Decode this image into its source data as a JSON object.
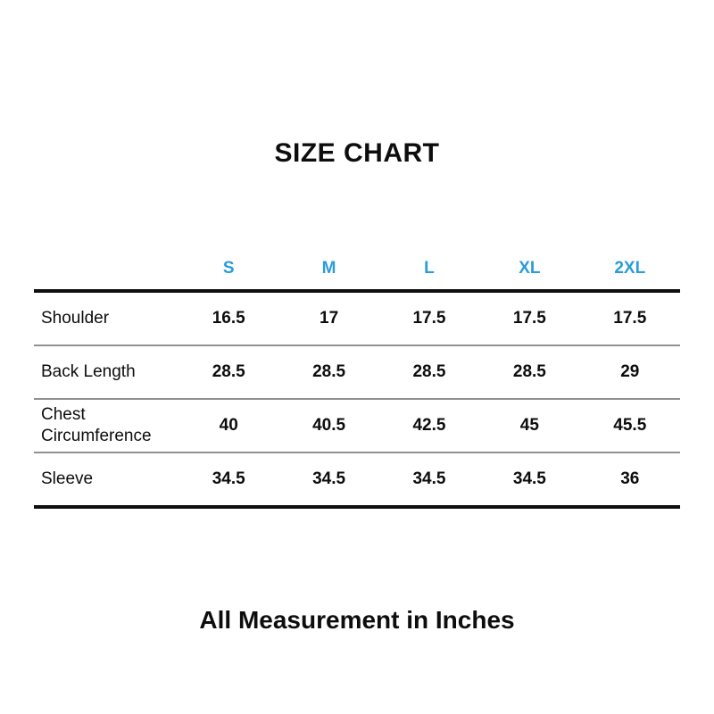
{
  "accent_color": "#2b9cd8",
  "chart_data": {
    "type": "table",
    "title": "SIZE CHART",
    "note": "All Measurement in Inches",
    "columns": [
      "S",
      "M",
      "L",
      "XL",
      "2XL"
    ],
    "rows": [
      {
        "label": "Shoulder",
        "values": [
          "16.5",
          "17",
          "17.5",
          "17.5",
          "17.5"
        ]
      },
      {
        "label": "Back Length",
        "values": [
          "28.5",
          "28.5",
          "28.5",
          "28.5",
          "29"
        ]
      },
      {
        "label": "Chest Circumference",
        "values": [
          "40",
          "40.5",
          "42.5",
          "45",
          "45.5"
        ]
      },
      {
        "label": "Sleeve",
        "values": [
          "34.5",
          "34.5",
          "34.5",
          "34.5",
          "36"
        ]
      }
    ]
  }
}
